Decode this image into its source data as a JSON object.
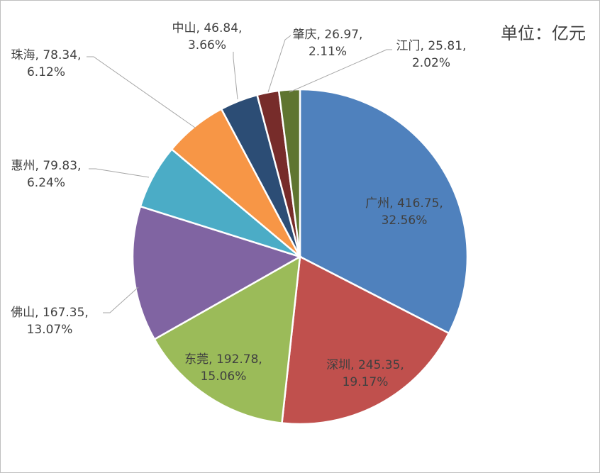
{
  "chart_data": {
    "type": "pie",
    "unit_label": "单位：亿元",
    "slices": [
      {
        "name": "广州",
        "value": 416.75,
        "pct": "32.56%",
        "color": "#4f81bd"
      },
      {
        "name": "深圳",
        "value": 245.35,
        "pct": "19.17%",
        "color": "#c0504d"
      },
      {
        "name": "东莞",
        "value": 192.78,
        "pct": "15.06%",
        "color": "#9bbb59"
      },
      {
        "name": "佛山",
        "value": 167.35,
        "pct": "13.07%",
        "color": "#8064a2"
      },
      {
        "name": "惠州",
        "value": 79.83,
        "pct": "6.24%",
        "color": "#4bacc6"
      },
      {
        "name": "珠海",
        "value": 78.34,
        "pct": "6.12%",
        "color": "#f79646"
      },
      {
        "name": "中山",
        "value": 46.84,
        "pct": "3.66%",
        "color": "#2c4d75"
      },
      {
        "name": "肇庆",
        "value": 26.97,
        "pct": "2.11%",
        "color": "#772c2a"
      },
      {
        "name": "江门",
        "value": 25.81,
        "pct": "2.02%",
        "color": "#5f7530"
      }
    ]
  }
}
